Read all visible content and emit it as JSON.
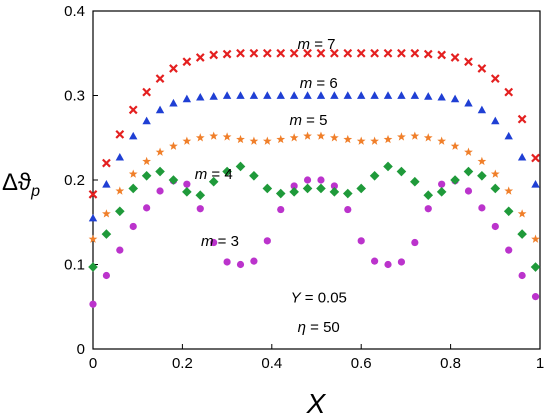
{
  "chart_data": {
    "type": "scatter",
    "title": "",
    "xlabel": "X",
    "ylabel_main": "Δϑ",
    "ylabel_sub": "p",
    "xlim": [
      0,
      1
    ],
    "ylim": [
      0,
      0.4
    ],
    "xticks": [
      "0",
      "0.2",
      "0.4",
      "0.6",
      "0.8",
      "1"
    ],
    "yticks": [
      "0",
      "0.1",
      "0.2",
      "0.3",
      "0.4"
    ],
    "grid": false,
    "x": [
      0.0,
      0.03,
      0.06,
      0.09,
      0.12,
      0.15,
      0.18,
      0.21,
      0.24,
      0.27,
      0.3,
      0.33,
      0.36,
      0.39,
      0.42,
      0.45,
      0.48,
      0.51,
      0.54,
      0.57,
      0.6,
      0.63,
      0.66,
      0.69,
      0.72,
      0.75,
      0.78,
      0.81,
      0.84,
      0.87,
      0.9,
      0.93,
      0.96,
      0.99
    ],
    "series": [
      {
        "name_prefix": "m",
        "name_value": "= 3",
        "color": "#bb33cc",
        "marker": "circle",
        "values": [
          0.053,
          0.087,
          0.117,
          0.145,
          0.167,
          0.187,
          0.199,
          0.195,
          0.166,
          0.126,
          0.103,
          0.1,
          0.104,
          0.128,
          0.165,
          0.193,
          0.2,
          0.2,
          0.193,
          0.165,
          0.128,
          0.104,
          0.1,
          0.103,
          0.126,
          0.166,
          0.195,
          0.199,
          0.187,
          0.167,
          0.145,
          0.117,
          0.087,
          0.062
        ]
      },
      {
        "name_prefix": "m",
        "name_value": "= 4",
        "color": "#1f9a3a",
        "marker": "diamond",
        "values": [
          0.097,
          0.136,
          0.163,
          0.19,
          0.205,
          0.21,
          0.2,
          0.186,
          0.182,
          0.198,
          0.21,
          0.216,
          0.205,
          0.19,
          0.184,
          0.186,
          0.19,
          0.19,
          0.186,
          0.184,
          0.19,
          0.205,
          0.216,
          0.21,
          0.198,
          0.182,
          0.186,
          0.2,
          0.21,
          0.205,
          0.19,
          0.163,
          0.136,
          0.097
        ]
      },
      {
        "name_prefix": "m",
        "name_value": "= 5",
        "color": "#f07f2a",
        "marker": "star",
        "values": [
          0.13,
          0.16,
          0.187,
          0.207,
          0.222,
          0.233,
          0.24,
          0.246,
          0.25,
          0.252,
          0.251,
          0.248,
          0.246,
          0.246,
          0.248,
          0.25,
          0.252,
          0.252,
          0.25,
          0.248,
          0.246,
          0.246,
          0.248,
          0.251,
          0.252,
          0.25,
          0.246,
          0.24,
          0.233,
          0.222,
          0.207,
          0.187,
          0.16,
          0.13
        ]
      },
      {
        "name_prefix": "m",
        "name_value": "= 6",
        "color": "#1f3fd4",
        "marker": "triangle",
        "values": [
          0.155,
          0.195,
          0.227,
          0.252,
          0.27,
          0.283,
          0.291,
          0.296,
          0.298,
          0.299,
          0.3,
          0.3,
          0.3,
          0.3,
          0.3,
          0.3,
          0.3,
          0.3,
          0.3,
          0.3,
          0.3,
          0.3,
          0.3,
          0.3,
          0.3,
          0.299,
          0.298,
          0.296,
          0.291,
          0.283,
          0.27,
          0.252,
          0.227,
          0.195
        ]
      },
      {
        "name_prefix": "m",
        "name_value": "= 7",
        "color": "#e42020",
        "marker": "x",
        "values": [
          0.183,
          0.22,
          0.254,
          0.283,
          0.304,
          0.32,
          0.332,
          0.34,
          0.345,
          0.348,
          0.349,
          0.35,
          0.35,
          0.35,
          0.35,
          0.35,
          0.35,
          0.35,
          0.35,
          0.35,
          0.35,
          0.35,
          0.35,
          0.35,
          0.35,
          0.349,
          0.348,
          0.345,
          0.34,
          0.332,
          0.32,
          0.304,
          0.272,
          0.226
        ]
      }
    ],
    "annotations": [
      {
        "symbol": "Y",
        "text": "= 0.05"
      },
      {
        "symbol": "η",
        "text": "= 50"
      }
    ]
  }
}
